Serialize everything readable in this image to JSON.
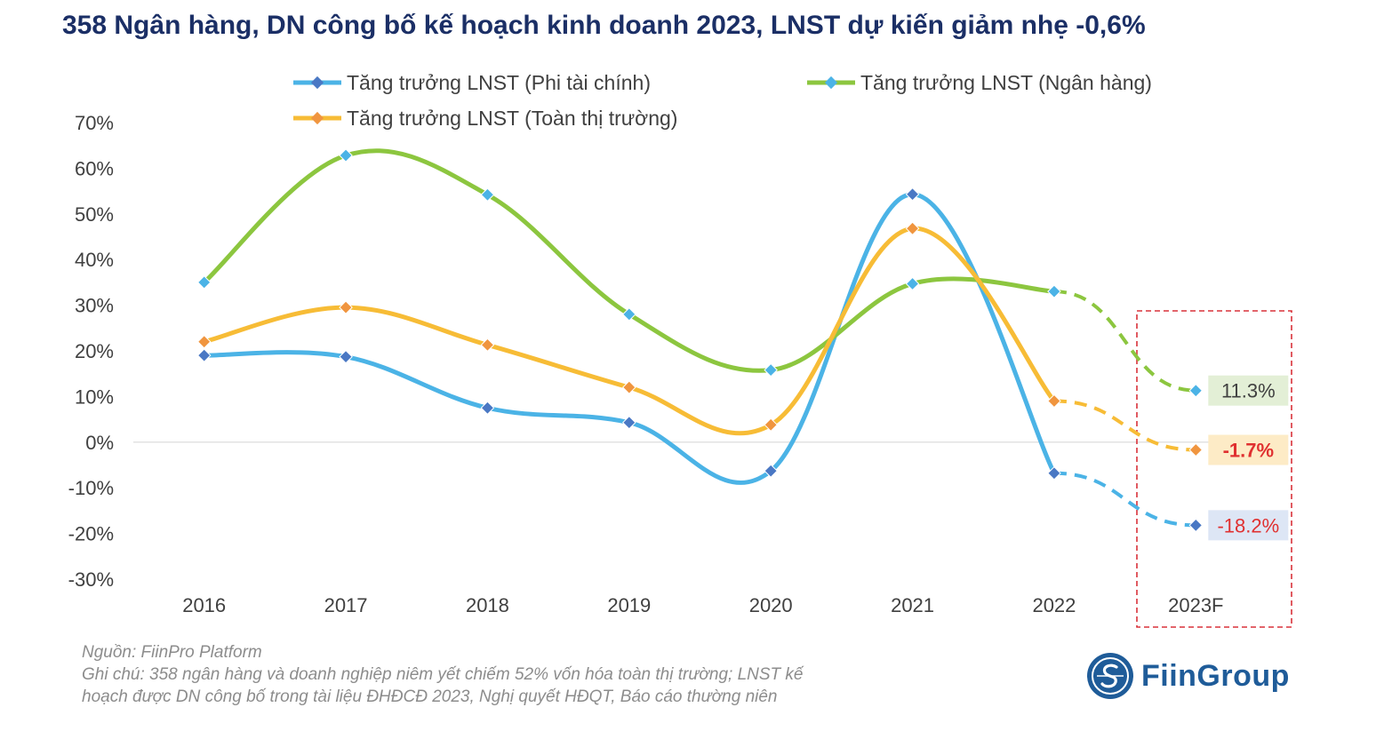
{
  "title": "358 Ngân hàng, DN công bố kế hoạch kinh doanh 2023, LNST dự kiến giảm nhẹ -0,6%",
  "chart_data": {
    "type": "line",
    "title": "358 Ngân hàng, DN công bố kế hoạch kinh doanh 2023, LNST dự kiến giảm nhẹ -0,6%",
    "categories": [
      "2016",
      "2017",
      "2018",
      "2019",
      "2020",
      "2021",
      "2022",
      "2023F"
    ],
    "ylim": [
      -30,
      70
    ],
    "yticks": [
      "70%",
      "60%",
      "50%",
      "40%",
      "30%",
      "20%",
      "10%",
      "0%",
      "-10%",
      "-20%",
      "-30%"
    ],
    "ytick_values": [
      70,
      60,
      50,
      40,
      30,
      20,
      10,
      0,
      -10,
      -20,
      -30
    ],
    "legend_position": "top",
    "forecast_category": "2023F",
    "series": [
      {
        "name": "Tăng trưởng LNST (Phi tài chính)",
        "values": [
          19,
          18.7,
          7.5,
          4.3,
          -6.3,
          54.3,
          -6.8,
          -18.2
        ],
        "color": "#4bb3e6",
        "marker_color": "#4a78c4",
        "label": "-18.2%",
        "label_bg": "#dde6f5",
        "label_color": "#e03030"
      },
      {
        "name": "Tăng trưởng LNST (Ngân hàng)",
        "values": [
          35,
          62.8,
          54.2,
          28,
          15.8,
          34.7,
          33,
          11.3
        ],
        "color": "#8cc63f",
        "marker_color": "#4bb3e6",
        "label": "11.3%",
        "label_bg": "#e3efd6",
        "label_color": "#404040"
      },
      {
        "name": "Tăng trưởng LNST (Toàn thị trường)",
        "values": [
          22,
          29.5,
          21.3,
          12,
          3.8,
          46.8,
          9,
          -1.7
        ],
        "color": "#f7bc36",
        "marker_color": "#f0953f",
        "label": "-1.7%",
        "label_bg": "#fdebc6",
        "label_color": "#e03030"
      }
    ]
  },
  "source": {
    "line1": "Nguồn: FiinPro Platform",
    "line2": "Ghi chú: 358 ngân hàng và doanh nghiệp niêm yết chiếm 52% vốn hóa toàn thị trường; LNST kế",
    "line3": "hoạch được DN công bố trong tài liệu ĐHĐCĐ 2023, Nghị quyết HĐQT, Báo cáo thường niên"
  },
  "brand": {
    "name": "FiinGroup",
    "logo_icon": "fiingroup-logo-icon",
    "color": "#1f5c99"
  }
}
